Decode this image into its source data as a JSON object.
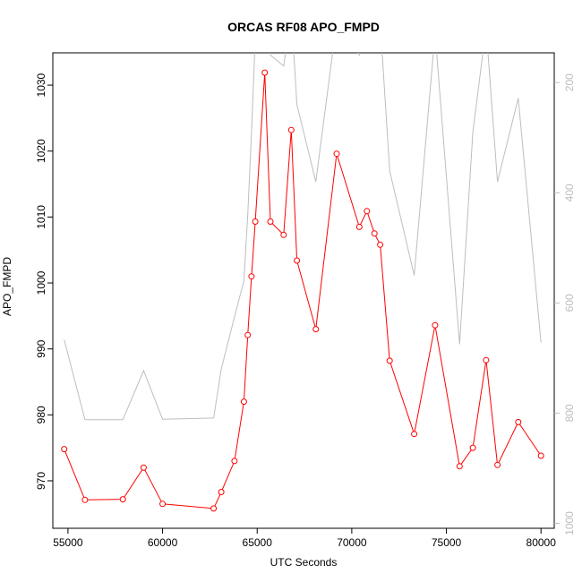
{
  "chart_data": {
    "type": "line",
    "title": "ORCAS RF08 APO_FMPD",
    "xlabel": "UTC Seconds",
    "ylabel": "APO_FMPD",
    "xlim": [
      54200,
      80700
    ],
    "ylim": [
      962.8,
      1034.9
    ],
    "x_ticks": [
      "55000",
      "60000",
      "65000",
      "70000",
      "75000",
      "80000"
    ],
    "y_ticks": [
      "970",
      "980",
      "990",
      "1000",
      "1010",
      "1020",
      "1030"
    ],
    "grid": false,
    "series": [
      {
        "color": "#ff0000",
        "marker": "open-circle",
        "axis": "left",
        "points": [
          [
            54800,
            974.8
          ],
          [
            55900,
            967.1
          ],
          [
            57900,
            967.2
          ],
          [
            59000,
            972.0
          ],
          [
            60000,
            966.5
          ],
          [
            62700,
            965.8
          ],
          [
            63100,
            968.3
          ],
          [
            63800,
            973.0
          ],
          [
            64300,
            982.0
          ],
          [
            64500,
            992.1
          ],
          [
            64700,
            1001.0
          ],
          [
            64900,
            1009.3
          ],
          [
            65400,
            1031.9
          ],
          [
            65700,
            1009.3
          ],
          [
            66400,
            1007.3
          ],
          [
            66800,
            1023.2
          ],
          [
            67100,
            1003.4
          ],
          [
            68100,
            993.0
          ],
          [
            69200,
            1019.6
          ],
          [
            70400,
            1008.5
          ],
          [
            70800,
            1010.9
          ],
          [
            71200,
            1007.5
          ],
          [
            71500,
            1005.8
          ],
          [
            72000,
            988.2
          ],
          [
            73300,
            977.1
          ],
          [
            74400,
            993.6
          ],
          [
            75700,
            972.2
          ],
          [
            76400,
            975.0
          ],
          [
            77100,
            988.3
          ],
          [
            77700,
            972.4
          ],
          [
            78800,
            978.9
          ],
          [
            80000,
            973.8
          ]
        ]
      },
      {
        "color": "#bebebe",
        "axis": "right",
        "points": [
          [
            54800,
            667
          ],
          [
            55900,
            812
          ],
          [
            57900,
            812
          ],
          [
            59000,
            723
          ],
          [
            60000,
            811
          ],
          [
            62700,
            809
          ],
          [
            63100,
            720
          ],
          [
            63800,
            625
          ],
          [
            64300,
            560
          ],
          [
            64500,
            440
          ],
          [
            64700,
            290
          ],
          [
            64900,
            120
          ],
          [
            65400,
            95
          ],
          [
            65700,
            150
          ],
          [
            66400,
            170
          ],
          [
            66800,
            70
          ],
          [
            67100,
            240
          ],
          [
            68100,
            380
          ],
          [
            69200,
            90
          ],
          [
            70400,
            150
          ],
          [
            70800,
            60
          ],
          [
            71200,
            50
          ],
          [
            71500,
            90
          ],
          [
            72000,
            360
          ],
          [
            73300,
            550
          ],
          [
            74400,
            110
          ],
          [
            75700,
            675
          ],
          [
            76400,
            290
          ],
          [
            77100,
            100
          ],
          [
            77700,
            380
          ],
          [
            78800,
            228
          ],
          [
            80000,
            672
          ]
        ]
      }
    ],
    "right_axis": {
      "ylim": [
        1009,
        146
      ],
      "ticks": [
        "200",
        "400",
        "600",
        "800",
        "1000"
      ],
      "color": "#bebebe"
    }
  }
}
